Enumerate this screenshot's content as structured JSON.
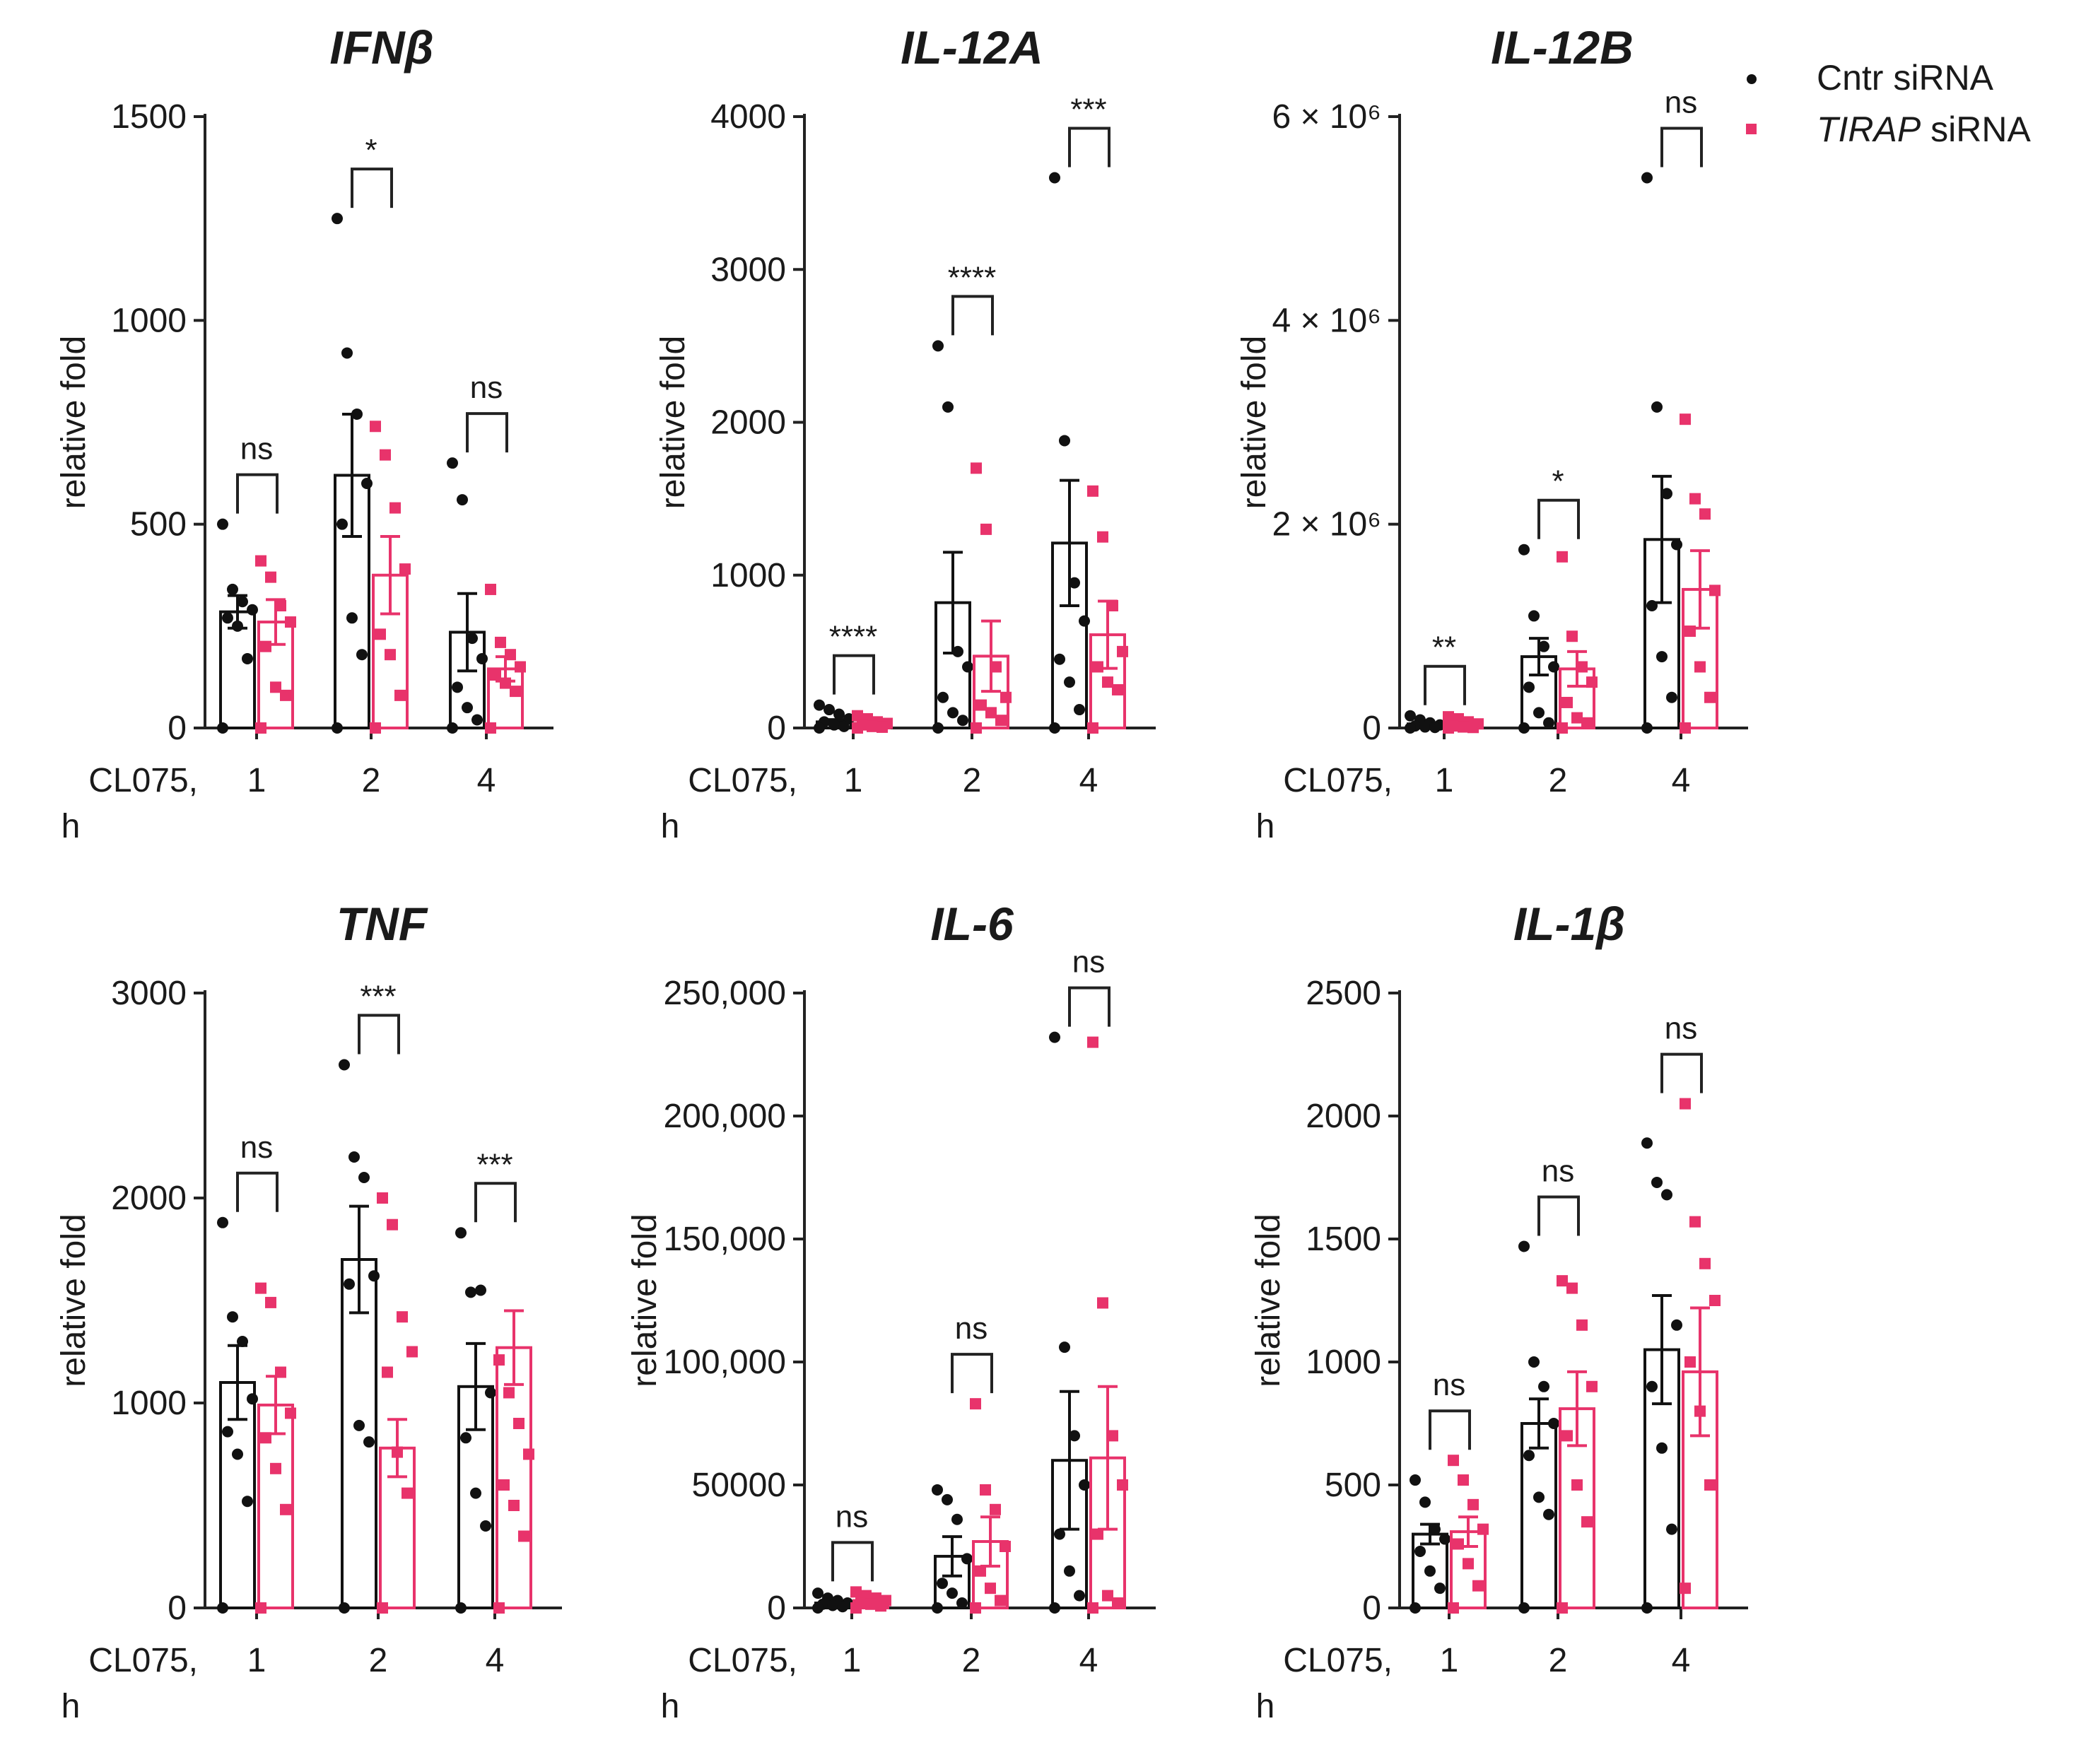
{
  "legend": {
    "items": [
      {
        "label": "Cntr siRNA",
        "color": "#111111",
        "marker": "circle"
      },
      {
        "prefix": "TIRAP",
        "label": " siRNA",
        "color": "#e8336b",
        "marker": "square"
      }
    ]
  },
  "colors": {
    "control": "#111111",
    "tirap": "#e8336b"
  },
  "chart_data": [
    {
      "type": "bar",
      "title": "IFNβ",
      "ylabel": "relative fold",
      "xlabel": "CL075, h",
      "categories": [
        "1",
        "2",
        "4"
      ],
      "ylim": [
        0,
        1500
      ],
      "yticks": [
        0,
        500,
        1000,
        1500
      ],
      "ytick_labels": [
        "0",
        "500",
        "1000",
        "1500"
      ],
      "series": [
        {
          "name": "Cntr siRNA",
          "values": [
            285,
            620,
            235
          ],
          "sem": [
            40,
            150,
            95
          ],
          "points": [
            [
              500,
              340,
              310,
              290,
              270,
              250,
              170,
              0
            ],
            [
              1250,
              920,
              770,
              600,
              500,
              270,
              180,
              0
            ],
            [
              650,
              560,
              220,
              170,
              100,
              50,
              20,
              0
            ]
          ]
        },
        {
          "name": "TIRAP siRNA",
          "values": [
            260,
            375,
            145
          ],
          "sem": [
            55,
            95,
            30
          ],
          "points": [
            [
              410,
              370,
              300,
              260,
              200,
              100,
              80,
              0
            ],
            [
              740,
              670,
              540,
              390,
              230,
              180,
              80,
              0
            ],
            [
              340,
              210,
              180,
              150,
              130,
              110,
              90,
              0
            ]
          ]
        }
      ],
      "significance": [
        "ns",
        "*",
        "ns"
      ]
    },
    {
      "type": "bar",
      "title": "IL-12A",
      "ylabel": "relative fold",
      "xlabel": "CL075, h",
      "categories": [
        "1",
        "2",
        "4"
      ],
      "ylim": [
        0,
        4000
      ],
      "yticks": [
        0,
        1000,
        2000,
        3000,
        4000
      ],
      "ytick_labels": [
        "0",
        "1000",
        "2000",
        "3000",
        "4000"
      ],
      "series": [
        {
          "name": "Cntr siRNA",
          "values": [
            40,
            820,
            1210
          ],
          "sem": [
            15,
            330,
            410
          ],
          "points": [
            [
              150,
              120,
              90,
              60,
              40,
              20,
              10,
              0
            ],
            [
              2500,
              2100,
              500,
              400,
              200,
              100,
              50,
              0
            ],
            [
              3600,
              1880,
              950,
              700,
              450,
              300,
              120,
              0
            ]
          ]
        },
        {
          "name": "TIRAP siRNA",
          "values": [
            30,
            470,
            610
          ],
          "sem": [
            10,
            230,
            220
          ],
          "points": [
            [
              80,
              60,
              40,
              30,
              20,
              10,
              5,
              0
            ],
            [
              1700,
              1300,
              400,
              200,
              150,
              100,
              50,
              0
            ],
            [
              1550,
              1250,
              800,
              500,
              400,
              300,
              250,
              0
            ]
          ]
        }
      ],
      "significance": [
        "****",
        "****",
        "***"
      ]
    },
    {
      "type": "bar",
      "title": "IL-12B",
      "ylabel": "relative fold",
      "xlabel": "CL075, h",
      "categories": [
        "1",
        "2",
        "4"
      ],
      "ylim": [
        0,
        6000000
      ],
      "yticks": [
        0,
        2000000,
        4000000,
        6000000
      ],
      "ytick_labels": [
        "0",
        "2 × 10⁶",
        "4 × 10⁶",
        "6 × 10⁶"
      ],
      "series": [
        {
          "name": "Cntr siRNA",
          "values": [
            40000,
            700000,
            1850000
          ],
          "sem": [
            20000,
            180000,
            620000
          ],
          "points": [
            [
              120000,
              80000,
              50000,
              30000,
              20000,
              10000,
              5000,
              0
            ],
            [
              1750000,
              1100000,
              800000,
              600000,
              400000,
              150000,
              50000,
              0
            ],
            [
              5400000,
              3150000,
              2300000,
              1800000,
              1200000,
              700000,
              300000,
              0
            ]
          ]
        },
        {
          "name": "TIRAP siRNA",
          "values": [
            50000,
            580000,
            1360000
          ],
          "sem": [
            20000,
            170000,
            380000
          ],
          "points": [
            [
              110000,
              90000,
              60000,
              40000,
              20000,
              10000,
              5000,
              0
            ],
            [
              1680000,
              900000,
              600000,
              450000,
              250000,
              100000,
              50000,
              0
            ],
            [
              3030000,
              2250000,
              2100000,
              1350000,
              950000,
              600000,
              300000,
              0
            ]
          ]
        }
      ],
      "significance": [
        "**",
        "*",
        "ns"
      ]
    },
    {
      "type": "bar",
      "title": "TNF",
      "ylabel": "relative fold",
      "xlabel": "CL075, h",
      "categories": [
        "1",
        "2",
        "4"
      ],
      "ylim": [
        0,
        3000
      ],
      "yticks": [
        0,
        1000,
        2000,
        3000
      ],
      "ytick_labels": [
        "0",
        "1000",
        "2000",
        "3000"
      ],
      "series": [
        {
          "name": "Cntr siRNA",
          "values": [
            1100,
            1700,
            1080
          ],
          "sem": [
            180,
            260,
            210
          ],
          "points": [
            [
              1880,
              1420,
              1300,
              1020,
              860,
              750,
              520,
              0
            ],
            [
              2650,
              2200,
              2100,
              1620,
              1580,
              890,
              810,
              0
            ],
            [
              1830,
              1540,
              1550,
              1050,
              830,
              560,
              400,
              0
            ]
          ]
        },
        {
          "name": "TIRAP siRNA",
          "values": [
            990,
            780,
            1270
          ],
          "sem": [
            140,
            140,
            180
          ],
          "points": [
            [
              1560,
              1490,
              1150,
              950,
              830,
              680,
              480,
              0
            ],
            [
              2000,
              1870,
              1420,
              1250,
              1150,
              760,
              560,
              0
            ],
            [
              1210,
              1050,
              900,
              750,
              600,
              500,
              350,
              0
            ]
          ]
        }
      ],
      "significance": [
        "ns",
        "***",
        "***"
      ]
    },
    {
      "type": "bar",
      "title": "IL-6",
      "ylabel": "relative fold",
      "xlabel": "CL075, h",
      "categories": [
        "1",
        "2",
        "4"
      ],
      "ylim": [
        0,
        250000
      ],
      "yticks": [
        0,
        50000,
        100000,
        150000,
        200000,
        250000
      ],
      "ytick_labels": [
        "0",
        "50000",
        "100,000",
        "150,000",
        "200,000",
        "250,000"
      ],
      "series": [
        {
          "name": "Cntr siRNA",
          "values": [
            2000,
            21000,
            60000
          ],
          "sem": [
            800,
            8000,
            28000
          ],
          "points": [
            [
              6000,
              4000,
              3000,
              2000,
              1500,
              1000,
              500,
              0
            ],
            [
              48000,
              44000,
              36000,
              20000,
              10000,
              6000,
              2000,
              0
            ],
            [
              232000,
              106000,
              70000,
              50000,
              30000,
              15000,
              5000,
              0
            ]
          ]
        },
        {
          "name": "TIRAP siRNA",
          "values": [
            3000,
            27000,
            61000
          ],
          "sem": [
            1000,
            10000,
            29000
          ],
          "points": [
            [
              6500,
              5000,
              4000,
              3000,
              2000,
              1500,
              800,
              0
            ],
            [
              83000,
              48000,
              40000,
              25000,
              15000,
              8000,
              3000,
              0
            ],
            [
              230000,
              124000,
              70000,
              50000,
              30000,
              5000,
              2000,
              0
            ]
          ]
        }
      ],
      "significance": [
        "ns",
        "ns",
        "ns"
      ]
    },
    {
      "type": "bar",
      "title": "IL-1β",
      "ylabel": "relative fold",
      "xlabel": "CL075, h",
      "categories": [
        "1",
        "2",
        "4"
      ],
      "ylim": [
        0,
        2500
      ],
      "yticks": [
        0,
        500,
        1000,
        1500,
        2000,
        2500
      ],
      "ytick_labels": [
        "0",
        "500",
        "1000",
        "1500",
        "2000",
        "2500"
      ],
      "series": [
        {
          "name": "Cntr siRNA",
          "values": [
            300,
            750,
            1050
          ],
          "sem": [
            40,
            100,
            220
          ],
          "points": [
            [
              520,
              430,
              320,
              280,
              230,
              150,
              80,
              0
            ],
            [
              1470,
              1000,
              900,
              750,
              620,
              450,
              380,
              0
            ],
            [
              1890,
              1730,
              1680,
              1150,
              900,
              650,
              320,
              0
            ]
          ]
        },
        {
          "name": "TIRAP siRNA",
          "values": [
            310,
            810,
            960
          ],
          "sem": [
            60,
            150,
            260
          ],
          "points": [
            [
              600,
              520,
              420,
              320,
              260,
              180,
              90,
              0
            ],
            [
              1330,
              1300,
              1150,
              900,
              700,
              500,
              350,
              0
            ],
            [
              2050,
              1570,
              1400,
              1250,
              1000,
              800,
              500,
              80
            ]
          ]
        }
      ],
      "significance": [
        "ns",
        "ns",
        "ns"
      ]
    }
  ]
}
